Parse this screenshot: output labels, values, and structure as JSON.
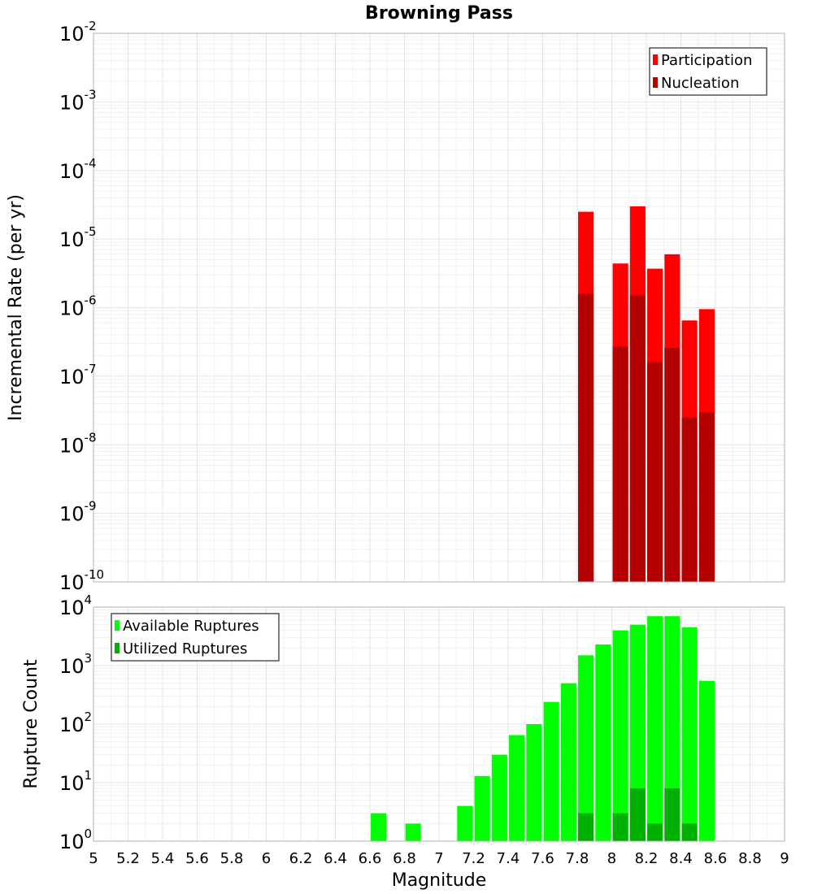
{
  "chart_data": [
    {
      "id": "rate",
      "type": "bar",
      "title": "Browning Pass",
      "xlabel": "",
      "ylabel": "Incremental Rate (per yr)",
      "yscale": "log",
      "ylim_exp": [
        -10,
        -2
      ],
      "xlim": [
        5,
        9
      ],
      "bar_width": 0.09,
      "legend_position": "top-right",
      "series": [
        {
          "name": "Participation",
          "color": "#ff0000",
          "x": [
            7.85,
            8.05,
            8.15,
            8.25,
            8.35,
            8.45,
            8.55
          ],
          "values": [
            2.5e-05,
            4.4e-06,
            3e-05,
            3.7e-06,
            6e-06,
            6.5e-07,
            9.5e-07
          ]
        },
        {
          "name": "Nucleation",
          "color": "#b30000",
          "x": [
            7.85,
            8.05,
            8.15,
            8.25,
            8.35,
            8.45,
            8.55
          ],
          "values": [
            1.6e-06,
            2.7e-07,
            1.5e-06,
            1.6e-07,
            2.6e-07,
            2.5e-08,
            3e-08
          ]
        }
      ]
    },
    {
      "id": "count",
      "type": "bar",
      "title": "",
      "xlabel": "Magnitude",
      "ylabel": "Rupture Count",
      "yscale": "log",
      "ylim_exp": [
        0,
        4
      ],
      "xlim": [
        5,
        9
      ],
      "bar_width": 0.09,
      "legend_position": "top-left",
      "series": [
        {
          "name": "Available Ruptures",
          "color": "#00ff00",
          "x": [
            6.65,
            6.85,
            6.95,
            7.15,
            7.25,
            7.35,
            7.45,
            7.55,
            7.65,
            7.75,
            7.85,
            7.95,
            8.05,
            8.15,
            8.25,
            8.35,
            8.45,
            8.55
          ],
          "values": [
            3,
            2,
            1,
            4,
            13,
            30,
            65,
            100,
            240,
            500,
            1500,
            2300,
            4000,
            5000,
            7000,
            7000,
            4500,
            550
          ]
        },
        {
          "name": "Utilized Ruptures",
          "color": "#00b000",
          "x": [
            7.85,
            8.05,
            8.15,
            8.25,
            8.35,
            8.45,
            8.55
          ],
          "values": [
            3,
            3,
            8,
            2,
            8,
            2,
            1
          ]
        }
      ]
    }
  ],
  "x_ticks": [
    "5",
    "5.2",
    "5.4",
    "5.6",
    "5.8",
    "6",
    "6.2",
    "6.4",
    "6.6",
    "6.8",
    "7",
    "7.2",
    "7.4",
    "7.6",
    "7.8",
    "8",
    "8.2",
    "8.4",
    "8.6",
    "8.8",
    "9"
  ]
}
